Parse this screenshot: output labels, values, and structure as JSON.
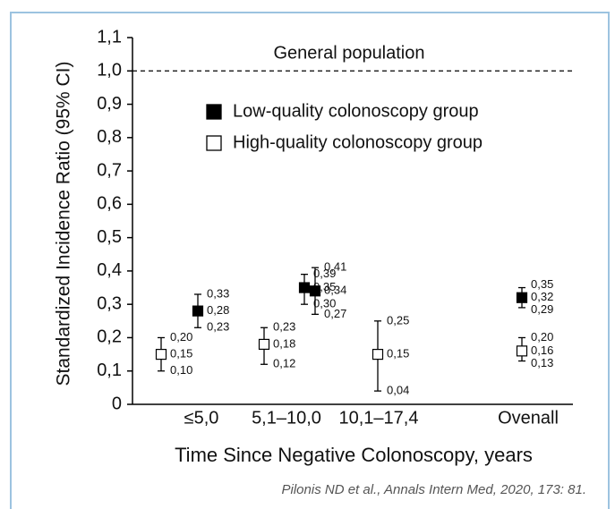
{
  "chart_data": {
    "type": "errorbar",
    "y_label": "Standardized Incidence Ratio (95% CI)",
    "x_label": "Time Since Negative Colonoscopy, years",
    "source": "Pilonis ND et al., Annals Intern Med, 2020, 173: 81.",
    "reference_line": {
      "value": 1.0,
      "label": "General population"
    },
    "categories": [
      "≤5,0",
      "5,1–10,0",
      "10,1–17,4",
      "Ovenall"
    ],
    "ylim": [
      0,
      1.1
    ],
    "yticks": [
      0,
      {
        "value": 0.1,
        "label": "0,1"
      },
      {
        "value": 0.2,
        "label": "0,2"
      },
      {
        "value": 0.3,
        "label": "0,3"
      },
      {
        "value": 0.4,
        "label": "0,4"
      },
      {
        "value": 0.5,
        "label": "0,5"
      },
      {
        "value": 0.6,
        "label": "0,6"
      },
      {
        "value": 0.7,
        "label": "0,7"
      },
      {
        "value": 0.8,
        "label": "0,8"
      },
      {
        "value": 0.9,
        "label": "0,9"
      },
      {
        "value": 1.0,
        "label": "1,0"
      },
      {
        "value": 1.1,
        "label": "1,1"
      }
    ],
    "series": [
      {
        "name": "Low-quality colonoscopy group",
        "color": "#000000",
        "filled": true,
        "values": [
          0.28,
          0.35,
          0.34,
          0.32
        ],
        "value_labels": [
          "0,28",
          "0,35",
          "0,34",
          "0,32"
        ],
        "lower": [
          0.23,
          0.3,
          0.27,
          0.29
        ],
        "lower_labels": [
          "0,23",
          "0,30",
          "0,27",
          "0,29"
        ],
        "upper": [
          0.33,
          0.39,
          0.41,
          0.35
        ],
        "upper_labels": [
          "0,33",
          "0,39",
          "0,41",
          "0,35"
        ]
      },
      {
        "name": "High-quality colonoscopy group",
        "color": "#000000",
        "filled": false,
        "values": [
          0.15,
          0.18,
          0.15,
          0.16
        ],
        "value_labels": [
          "0,15",
          "0,18",
          "0,15",
          "0,16"
        ],
        "lower": [
          0.1,
          0.12,
          0.04,
          0.13
        ],
        "lower_labels": [
          "0,10",
          "0,12",
          "0,04",
          "0,13"
        ],
        "upper": [
          0.2,
          0.23,
          0.25,
          0.2
        ],
        "upper_labels": [
          "0,20",
          "0,23",
          "0,25",
          "0,20"
        ]
      }
    ]
  }
}
